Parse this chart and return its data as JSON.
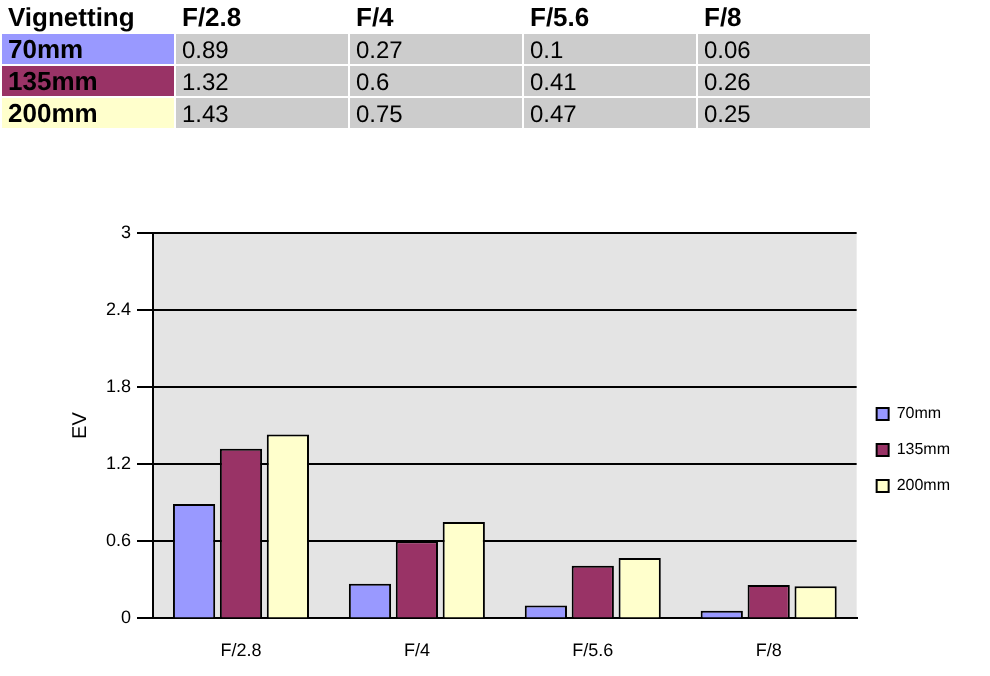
{
  "chart_data": {
    "type": "bar",
    "title": "Vignetting",
    "ylabel": "EV",
    "categories": [
      "F/2.8",
      "F/4",
      "F/5.6",
      "F/8"
    ],
    "series": [
      {
        "name": "70mm",
        "color": "#9999ff",
        "values": [
          0.89,
          0.27,
          0.1,
          0.06
        ]
      },
      {
        "name": "135mm",
        "color": "#993366",
        "values": [
          1.32,
          0.6,
          0.41,
          0.26
        ]
      },
      {
        "name": "200mm",
        "color": "#ffffcc",
        "values": [
          1.43,
          0.75,
          0.47,
          0.25
        ]
      }
    ],
    "ylim": [
      0,
      3
    ],
    "yticks": [
      0,
      0.6,
      1.2,
      1.8,
      2.4,
      3
    ],
    "grid": "y",
    "legend": "right",
    "data_labels": true
  }
}
